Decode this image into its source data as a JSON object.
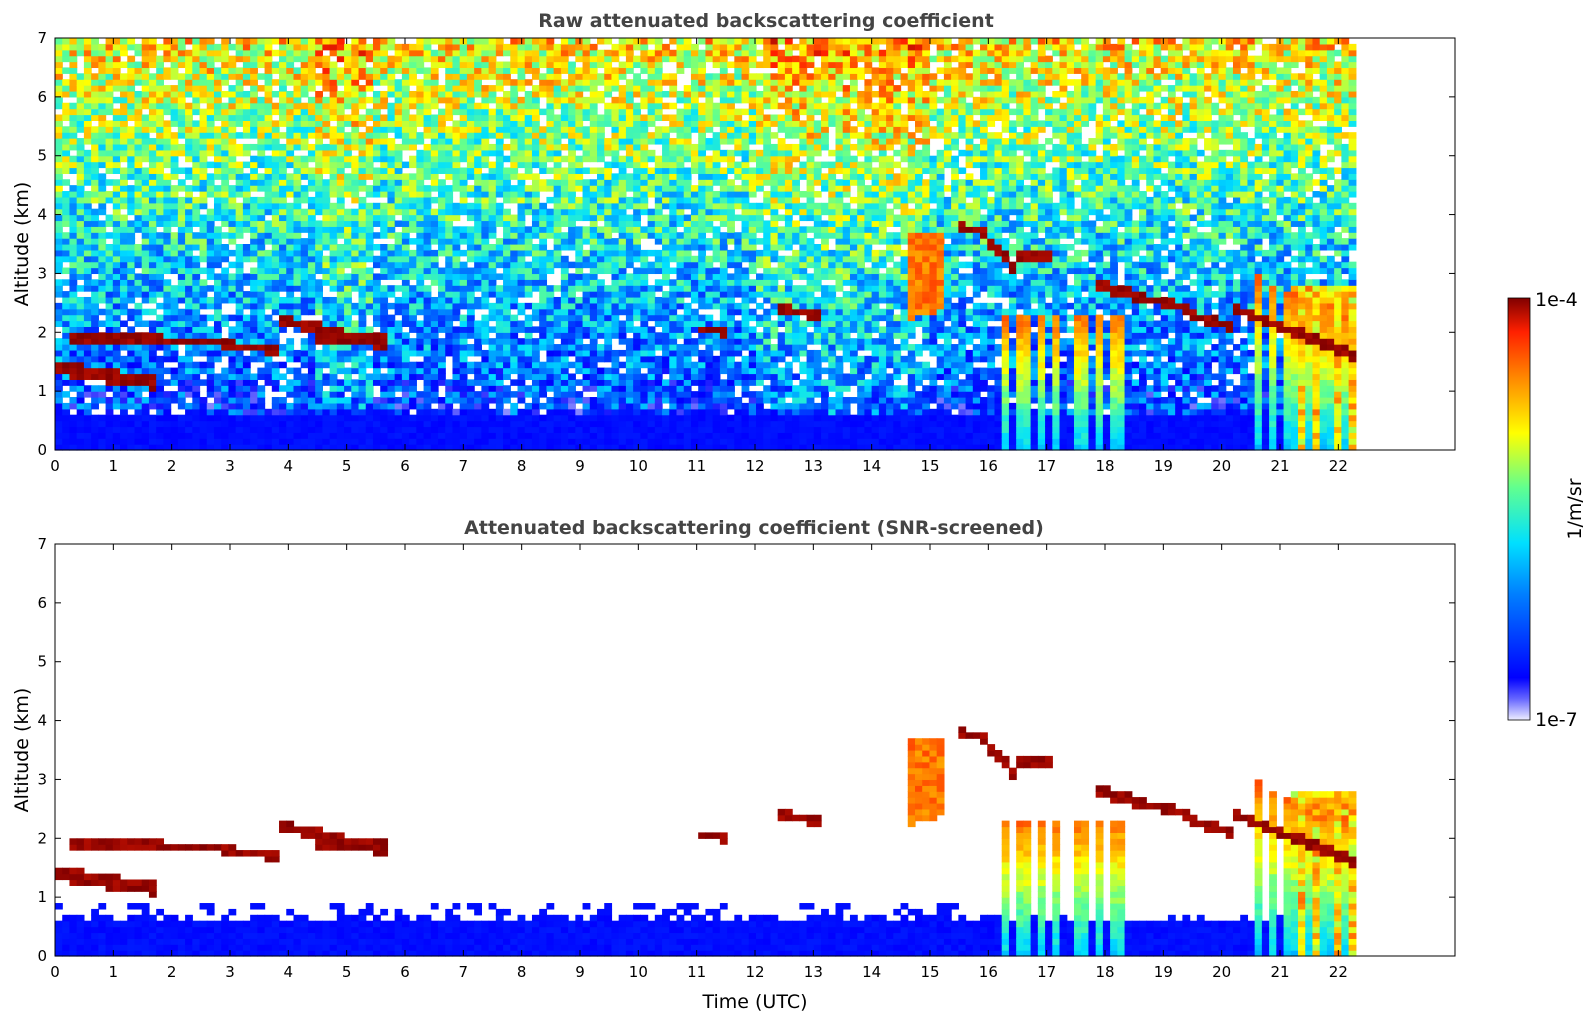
{
  "chart_data": [
    {
      "type": "heatmap",
      "title": "Raw attenuated backscattering coefficient",
      "xlabel": "",
      "ylabel": "Altitude (km)",
      "xlim": [
        0,
        24
      ],
      "ylim": [
        0,
        7
      ],
      "x_ticks": [
        "0",
        "1",
        "2",
        "3",
        "4",
        "5",
        "6",
        "7",
        "8",
        "9",
        "10",
        "11",
        "12",
        "13",
        "14",
        "15",
        "16",
        "17",
        "18",
        "19",
        "20",
        "21",
        "22"
      ],
      "y_ticks": [
        "0",
        "1",
        "2",
        "3",
        "4",
        "5",
        "6",
        "7"
      ],
      "data_end_time": 22.3,
      "screened": false,
      "features": [
        {
          "kind": "boundary_layer",
          "from": 0,
          "to": 22.3,
          "top_km": 0.5
        },
        {
          "kind": "cloud_layer",
          "from": 0.0,
          "to": 1.7,
          "alt_km": [
            1.4,
            1.1
          ]
        },
        {
          "kind": "cloud_layer",
          "from": 0.3,
          "to": 5.7,
          "alt_km": [
            1.9,
            1.8
          ]
        },
        {
          "kind": "cloud_layer",
          "from": 11.0,
          "to": 11.5,
          "alt_km": [
            2.1,
            2.0
          ]
        },
        {
          "kind": "cloud_layer",
          "from": 12.4,
          "to": 13.1,
          "alt_km": [
            2.4,
            2.3
          ]
        },
        {
          "kind": "cloud_layer",
          "from": 15.5,
          "to": 22.3,
          "alt_km": [
            3.8,
            1.6
          ]
        },
        {
          "kind": "virga_band",
          "from": 14.6,
          "to": 15.3,
          "alt_km": [
            3.5,
            2.2
          ]
        },
        {
          "kind": "precipitation_streaks",
          "from": 16.2,
          "to": 18.4,
          "alt_km": [
            2.5,
            0.0
          ]
        },
        {
          "kind": "precipitation_streaks",
          "from": 20.4,
          "to": 22.3,
          "alt_km": [
            3.6,
            0.0
          ]
        }
      ]
    },
    {
      "type": "heatmap",
      "title": "Attenuated backscattering coefficient (SNR-screened)",
      "xlabel": "Time (UTC)",
      "ylabel": "Altitude (km)",
      "xlim": [
        0,
        24
      ],
      "ylim": [
        0,
        7
      ],
      "x_ticks": [
        "0",
        "1",
        "2",
        "3",
        "4",
        "5",
        "6",
        "7",
        "8",
        "9",
        "10",
        "11",
        "12",
        "13",
        "14",
        "15",
        "16",
        "17",
        "18",
        "19",
        "20",
        "21",
        "22"
      ],
      "y_ticks": [
        "0",
        "1",
        "2",
        "3",
        "4",
        "5",
        "6",
        "7"
      ],
      "data_end_time": 22.3,
      "screened": true
    }
  ],
  "colorbar": {
    "label": "1/m/sr",
    "max_label": "1e-4",
    "min_label": "1e-7",
    "scale": "log",
    "colormap": "jet",
    "range": [
      1e-07,
      0.0001
    ]
  }
}
